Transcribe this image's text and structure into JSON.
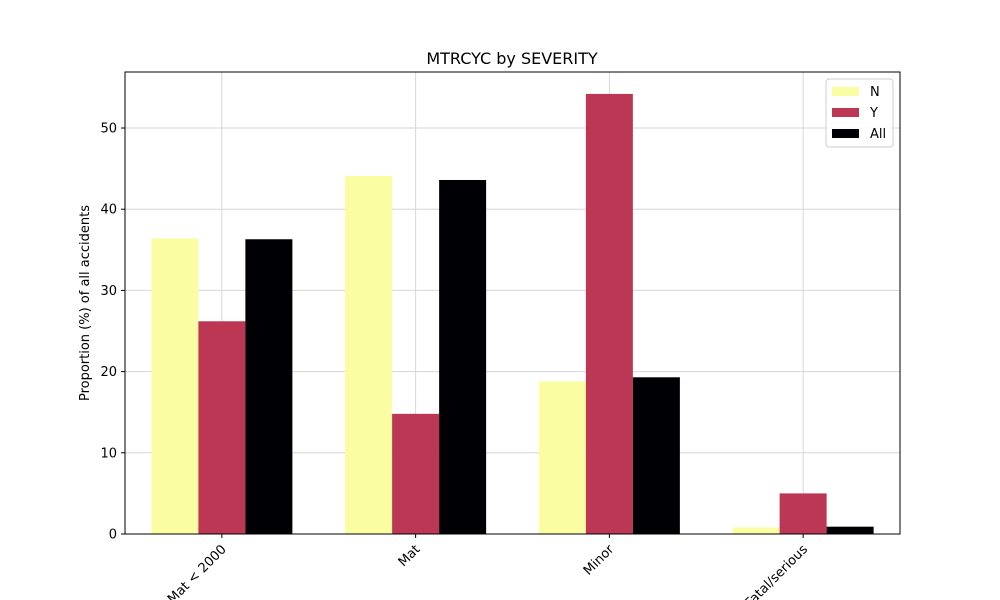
{
  "chart_data": {
    "type": "bar",
    "title": "MTRCYC by SEVERITY",
    "xlabel": "",
    "ylabel": "Proportion (%) of all accidents",
    "categories": [
      "Mat < 2000",
      "Mat",
      "Minor",
      "Fatal/serious"
    ],
    "series": [
      {
        "name": "N",
        "color": "#fbfda2",
        "values": [
          36.4,
          44.1,
          18.8,
          0.8
        ]
      },
      {
        "name": "Y",
        "color": "#bc3754",
        "values": [
          26.2,
          14.8,
          54.2,
          5.0
        ]
      },
      {
        "name": "All",
        "color": "#000004",
        "values": [
          36.3,
          43.6,
          19.3,
          0.9
        ]
      }
    ],
    "ylim": [
      0,
      56.9
    ],
    "yticks": [
      0,
      10,
      20,
      30,
      40,
      50
    ],
    "grid": true,
    "legend_position": "top-right"
  }
}
